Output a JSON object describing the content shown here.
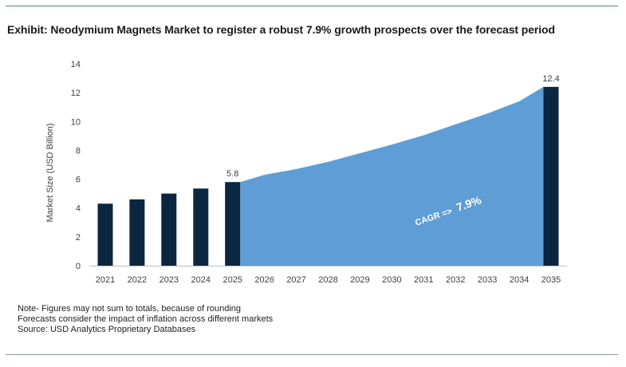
{
  "header": {
    "title": "Exhibit: Neodymium Magnets Market to register a robust 7.9% growth prospects over the forecast period"
  },
  "chart_data": {
    "type": "bar",
    "title": "Exhibit: Neodymium Magnets Market to register a robust 7.9% growth prospects over the forecast period",
    "xlabel": "",
    "ylabel": "Market Size (USD Billion)",
    "ylim": [
      0,
      14
    ],
    "yticks": [
      0,
      2,
      4,
      6,
      8,
      10,
      12,
      14
    ],
    "grid": false,
    "categories": [
      "2021",
      "2022",
      "2023",
      "2024",
      "2025",
      "2026",
      "2027",
      "2028",
      "2029",
      "2030",
      "2031",
      "2032",
      "2033",
      "2034",
      "2035"
    ],
    "bars": [
      {
        "x": "2021",
        "value": 4.3
      },
      {
        "x": "2022",
        "value": 4.6
      },
      {
        "x": "2023",
        "value": 5.0
      },
      {
        "x": "2024",
        "value": 5.35
      },
      {
        "x": "2025",
        "value": 5.8,
        "label": "5.8"
      },
      {
        "x": "2035",
        "value": 12.4,
        "label": "12.4"
      }
    ],
    "area": {
      "x": [
        "2025",
        "2026",
        "2027",
        "2028",
        "2029",
        "2030",
        "2031",
        "2032",
        "2033",
        "2034",
        "2035"
      ],
      "values": [
        5.8,
        6.3,
        6.7,
        7.2,
        7.8,
        8.4,
        9.05,
        9.8,
        10.55,
        11.4,
        12.4
      ]
    },
    "annotation": {
      "prefix": "CAGR =>",
      "value": "7.9%"
    },
    "colors": {
      "bar": "#0a2640",
      "area": "#5f9dd6",
      "axis": "#bfbfbf",
      "text": "#404040"
    }
  },
  "notes": [
    "Note- Figures may not sum to totals, because of rounding",
    "Forecasts consider the impact of inflation across different markets",
    "Source: USD Analytics Proprietary Databases"
  ]
}
